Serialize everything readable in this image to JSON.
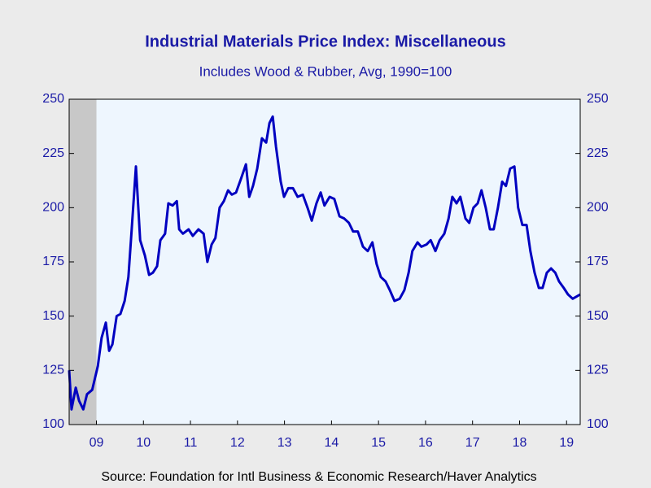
{
  "chart_data": {
    "type": "line",
    "title": "Industrial Materials Price Index: Miscellaneous",
    "subtitle": "Includes Wood & Rubber, Avg, 1990=100",
    "source": "Source:  Foundation for Intl Business & Economic Research/Haver Analytics",
    "color": "#0000c0",
    "shading": [
      [
        2008.92,
        2009.5
      ]
    ],
    "x": [
      2008.92,
      2008.97,
      2009.06,
      2009.13,
      2009.22,
      2009.3,
      2009.41,
      2009.53,
      2009.61,
      2009.7,
      2009.77,
      2009.84,
      2009.93,
      2010.01,
      2010.1,
      2010.18,
      2010.25,
      2010.34,
      2010.43,
      2010.53,
      2010.62,
      2010.7,
      2010.79,
      2010.86,
      2010.96,
      2011.03,
      2011.12,
      2011.21,
      2011.26,
      2011.34,
      2011.46,
      2011.55,
      2011.67,
      2011.78,
      2011.86,
      2011.95,
      2012.03,
      2012.12,
      2012.21,
      2012.3,
      2012.38,
      2012.47,
      2012.57,
      2012.68,
      2012.75,
      2012.83,
      2012.92,
      2013.02,
      2013.11,
      2013.18,
      2013.25,
      2013.32,
      2013.42,
      2013.49,
      2013.58,
      2013.68,
      2013.78,
      2013.89,
      2013.99,
      2014.08,
      2014.18,
      2014.27,
      2014.35,
      2014.46,
      2014.56,
      2014.67,
      2014.77,
      2014.87,
      2014.96,
      2015.06,
      2015.17,
      2015.27,
      2015.37,
      2015.46,
      2015.55,
      2015.65,
      2015.74,
      2015.84,
      2015.95,
      2016.05,
      2016.14,
      2016.22,
      2016.33,
      2016.41,
      2016.52,
      2016.61,
      2016.71,
      2016.8,
      2016.9,
      2016.99,
      2017.07,
      2017.16,
      2017.24,
      2017.35,
      2017.43,
      2017.52,
      2017.61,
      2017.69,
      2017.78,
      2017.87,
      2017.95,
      2018.04,
      2018.13,
      2018.21,
      2018.3,
      2018.39,
      2018.47,
      2018.56,
      2018.65,
      2018.73,
      2018.82,
      2018.91,
      2018.99,
      2019.08,
      2019.17,
      2019.26,
      2019.34,
      2019.44,
      2019.53,
      2019.63,
      2019.71,
      2019.79
    ],
    "values": [
      125,
      107,
      117,
      111,
      107,
      114,
      116,
      127,
      140,
      147,
      134,
      137,
      150,
      151,
      157,
      168,
      190,
      219,
      185,
      178,
      169,
      170,
      173,
      185,
      188,
      202,
      201,
      203,
      190,
      188,
      190,
      187,
      190,
      188,
      175,
      183,
      186,
      200,
      203,
      208,
      206,
      207,
      213,
      220,
      205,
      210,
      218,
      232,
      230,
      239,
      242,
      228,
      212,
      205,
      209,
      209,
      205,
      206,
      200,
      194,
      202,
      207,
      201,
      205,
      204,
      196,
      195,
      193,
      189,
      189,
      182,
      180,
      184,
      174,
      168,
      166,
      162,
      157,
      158,
      162,
      170,
      180,
      184,
      182,
      183,
      185,
      180,
      185,
      188,
      195,
      205,
      202,
      205,
      195,
      193,
      200,
      202,
      208,
      200,
      190,
      190,
      200,
      212,
      210,
      218,
      219,
      200,
      192,
      192,
      180,
      170,
      163,
      163,
      170,
      172,
      170,
      166,
      163,
      160,
      158,
      159,
      160
    ],
    "xlim": [
      2008.92,
      2019.79
    ],
    "xticks": [
      {
        "value": 2009.5,
        "label": "09"
      },
      {
        "value": 2010.5,
        "label": "10"
      },
      {
        "value": 2011.5,
        "label": "11"
      },
      {
        "value": 2012.5,
        "label": "12"
      },
      {
        "value": 2013.5,
        "label": "13"
      },
      {
        "value": 2014.5,
        "label": "14"
      },
      {
        "value": 2015.5,
        "label": "15"
      },
      {
        "value": 2016.5,
        "label": "16"
      },
      {
        "value": 2017.5,
        "label": "17"
      },
      {
        "value": 2018.5,
        "label": "18"
      },
      {
        "value": 2019.5,
        "label": "19"
      }
    ],
    "ylim": [
      100,
      250
    ],
    "yticks": [
      100,
      125,
      150,
      175,
      200,
      225,
      250
    ],
    "y2lim": [
      100,
      250
    ],
    "y2ticks": [
      100,
      125,
      150,
      175,
      200,
      225,
      250
    ]
  }
}
